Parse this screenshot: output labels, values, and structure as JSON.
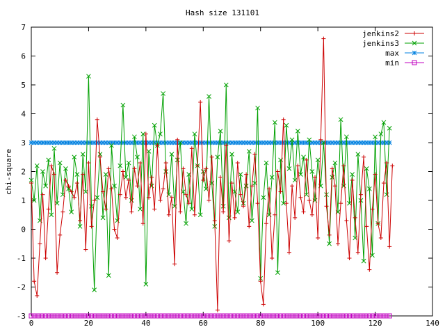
{
  "chart_data": {
    "type": "line",
    "title": "Hash size 131101",
    "xlabel": "",
    "ylabel": "chi-square",
    "xlim": [
      0,
      140
    ],
    "ylim": [
      -3,
      7
    ],
    "xticks": [
      0,
      20,
      40,
      60,
      80,
      100,
      120,
      140
    ],
    "yticks": [
      -3,
      -2,
      -1,
      0,
      1,
      2,
      3,
      4,
      5,
      6,
      7
    ],
    "grid": false,
    "legend": "top-right",
    "series": [
      {
        "name": "jenkins2",
        "color": "#cc0000",
        "marker": "plus",
        "values": [
          1.6,
          -1.8,
          -2.3,
          -0.5,
          1.2,
          -1.0,
          0.7,
          2.2,
          1.9,
          -1.5,
          -0.2,
          0.6,
          1.7,
          1.5,
          1.3,
          1.1,
          1.6,
          0.3,
          1.9,
          -0.7,
          2.3,
          0.1,
          1.0,
          3.8,
          2.5,
          1.3,
          0.7,
          2.1,
          1.4,
          0.0,
          -0.3,
          1.2,
          2.0,
          1.1,
          1.7,
          0.6,
          2.1,
          1.5,
          2.3,
          0.2,
          3.3,
          1.1,
          1.8,
          0.7,
          2.9,
          1.0,
          1.4,
          2.3,
          0.5,
          1.1,
          -1.2,
          3.1,
          0.6,
          2.1,
          1.2,
          0.9,
          2.8,
          0.5,
          2.2,
          4.4,
          1.7,
          2.1,
          1.0,
          2.5,
          0.3,
          -2.8,
          1.8,
          0.6,
          2.9,
          -0.4,
          1.6,
          0.4,
          2.3,
          1.2,
          0.8,
          1.9,
          0.1,
          1.5,
          2.6,
          0.9,
          -1.8,
          -2.6,
          0.2,
          1.4,
          -1.0,
          0.5,
          2.0,
          1.3,
          3.8,
          0.9,
          -0.8,
          1.5,
          0.4,
          2.2,
          1.1,
          0.6,
          2.4,
          1.0,
          0.5,
          1.8,
          -0.3,
          3.1,
          6.6,
          0.8,
          -0.2,
          2.1,
          1.5,
          -0.5,
          0.9,
          2.2,
          0.3,
          -1.0,
          1.7,
          0.4,
          -0.8,
          1.2,
          2.5,
          0.1,
          -1.4,
          0.7,
          1.9,
          0.2,
          -0.3,
          1.6,
          2.3,
          -0.6,
          2.2
        ]
      },
      {
        "name": "jenkins3",
        "color": "#00a000",
        "marker": "cross",
        "values": [
          1.7,
          1.0,
          2.2,
          0.3,
          2.0,
          1.5,
          2.4,
          0.5,
          2.8,
          0.9,
          2.3,
          1.2,
          2.1,
          1.4,
          0.6,
          2.5,
          1.9,
          0.1,
          2.6,
          1.3,
          5.3,
          0.8,
          -2.1,
          1.1,
          2.6,
          0.4,
          1.9,
          -1.6,
          2.9,
          1.5,
          0.3,
          2.2,
          4.3,
          1.8,
          2.3,
          1.0,
          3.2,
          2.5,
          0.7,
          3.3,
          -1.9,
          2.7,
          1.5,
          3.6,
          2.9,
          3.3,
          4.7,
          2.0,
          1.2,
          2.6,
          0.8,
          2.4,
          3.0,
          1.3,
          0.2,
          1.9,
          0.7,
          3.3,
          2.2,
          0.5,
          2.0,
          1.4,
          4.6,
          1.6,
          0.1,
          2.5,
          3.4,
          0.8,
          5.0,
          0.4,
          2.6,
          1.3,
          0.6,
          1.9,
          0.9,
          1.5,
          2.7,
          0.3,
          1.6,
          4.2,
          -1.7,
          1.1,
          2.3,
          0.5,
          1.8,
          3.7,
          -1.5,
          2.4,
          0.9,
          3.6,
          2.1,
          3.1,
          1.7,
          3.4,
          1.9,
          2.5,
          1.2,
          3.1,
          2.0,
          1.0,
          2.4,
          1.5,
          3.0,
          1.2,
          -0.5,
          1.8,
          2.3,
          0.6,
          3.8,
          1.5,
          3.2,
          0.9,
          1.9,
          -0.3,
          2.6,
          1.0,
          -1.1,
          2.1,
          1.4,
          -0.9,
          3.2,
          0.2,
          3.3,
          3.7,
          1.2,
          3.5
        ]
      },
      {
        "name": "max",
        "color": "#0080e0",
        "marker": "star",
        "values": [
          3,
          3,
          3,
          3,
          3,
          3,
          3,
          3,
          3,
          3,
          3,
          3,
          3,
          3,
          3,
          3,
          3,
          3,
          3,
          3,
          3,
          3,
          3,
          3,
          3,
          3,
          3,
          3,
          3,
          3,
          3,
          3,
          3,
          3,
          3,
          3,
          3,
          3,
          3,
          3,
          3,
          3,
          3,
          3,
          3,
          3,
          3,
          3,
          3,
          3,
          3,
          3,
          3,
          3,
          3,
          3,
          3,
          3,
          3,
          3,
          3,
          3,
          3,
          3,
          3,
          3,
          3,
          3,
          3,
          3,
          3,
          3,
          3,
          3,
          3,
          3,
          3,
          3,
          3,
          3,
          3,
          3,
          3,
          3,
          3,
          3,
          3,
          3,
          3,
          3,
          3,
          3,
          3,
          3,
          3,
          3,
          3,
          3,
          3,
          3,
          3,
          3,
          3,
          3,
          3,
          3,
          3,
          3,
          3,
          3,
          3,
          3,
          3,
          3,
          3,
          3,
          3,
          3,
          3,
          3,
          3,
          3,
          3,
          3,
          3,
          3
        ]
      },
      {
        "name": "min",
        "color": "#c000c0",
        "marker": "square",
        "values": [
          -3,
          -3,
          -3,
          -3,
          -3,
          -3,
          -3,
          -3,
          -3,
          -3,
          -3,
          -3,
          -3,
          -3,
          -3,
          -3,
          -3,
          -3,
          -3,
          -3,
          -3,
          -3,
          -3,
          -3,
          -3,
          -3,
          -3,
          -3,
          -3,
          -3,
          -3,
          -3,
          -3,
          -3,
          -3,
          -3,
          -3,
          -3,
          -3,
          -3,
          -3,
          -3,
          -3,
          -3,
          -3,
          -3,
          -3,
          -3,
          -3,
          -3,
          -3,
          -3,
          -3,
          -3,
          -3,
          -3,
          -3,
          -3,
          -3,
          -3,
          -3,
          -3,
          -3,
          -3,
          -3,
          -3,
          -3,
          -3,
          -3,
          -3,
          -3,
          -3,
          -3,
          -3,
          -3,
          -3,
          -3,
          -3,
          -3,
          -3,
          -3,
          -3,
          -3,
          -3,
          -3,
          -3,
          -3,
          -3,
          -3,
          -3,
          -3,
          -3,
          -3,
          -3,
          -3,
          -3,
          -3,
          -3,
          -3,
          -3,
          -3,
          -3,
          -3,
          -3,
          -3,
          -3,
          -3,
          -3,
          -3,
          -3,
          -3,
          -3,
          -3,
          -3,
          -3,
          -3,
          -3,
          -3,
          -3,
          -3,
          -3,
          -3,
          -3,
          -3,
          -3,
          -3
        ]
      }
    ]
  }
}
